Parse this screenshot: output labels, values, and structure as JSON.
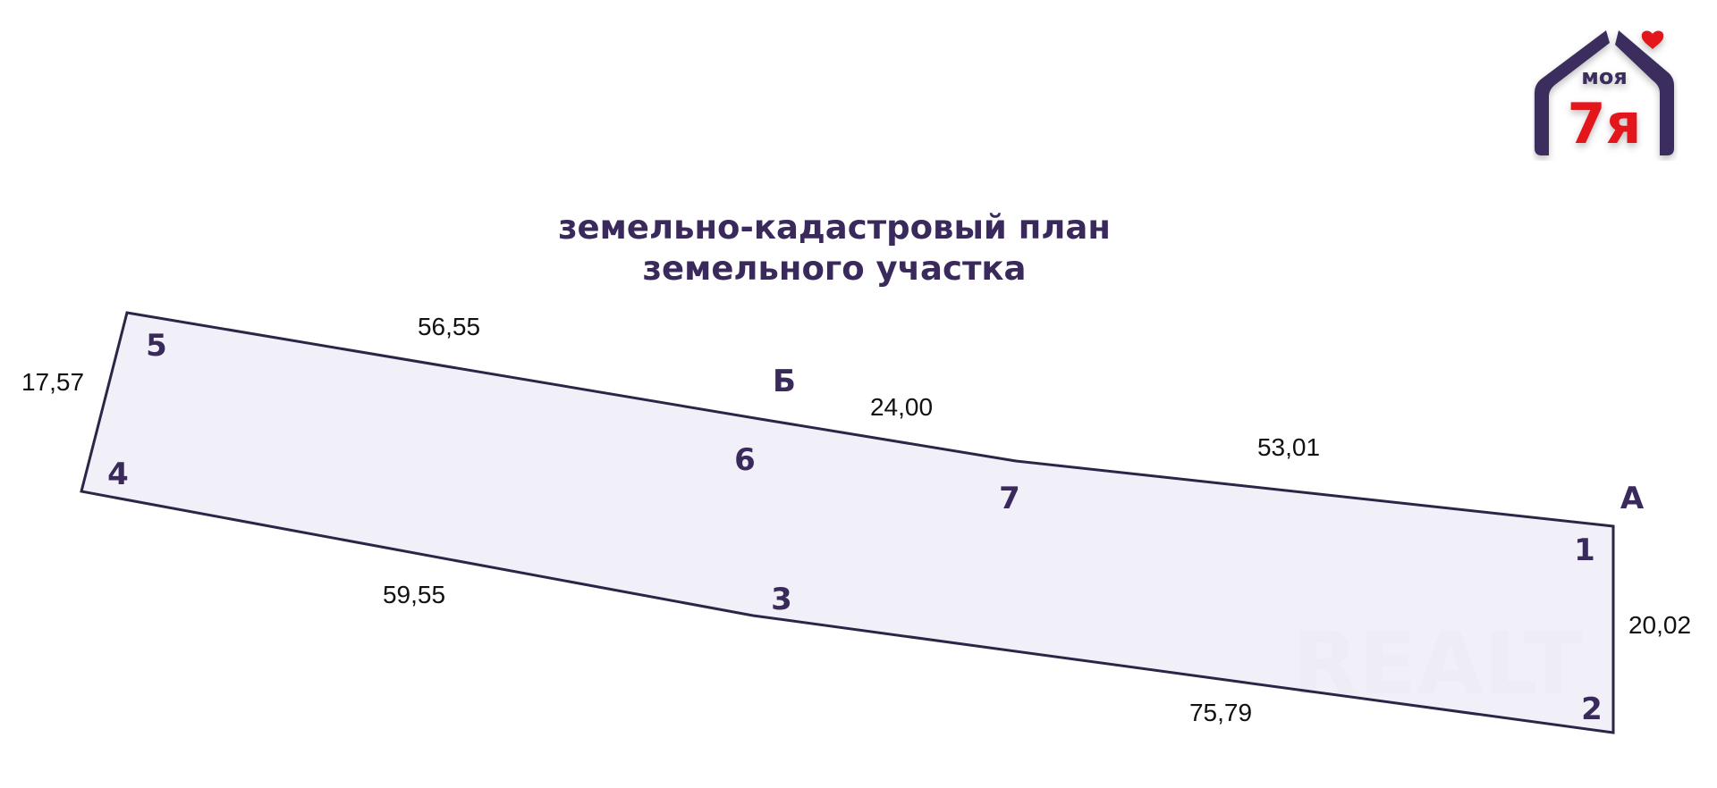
{
  "title": {
    "line1": "земельно-кадастровый план",
    "line2": "земельного участка"
  },
  "logo": {
    "text_top": "моя",
    "text_bottom": "7я",
    "colors": {
      "house": "#3a2f5e",
      "accent": "#e3141b"
    }
  },
  "watermark": "REALT",
  "plot": {
    "fill_color": "#efedf8",
    "stroke_color": "#2e2448",
    "points": [
      "1",
      "2",
      "3",
      "4",
      "5",
      "6",
      "7"
    ],
    "markers": [
      "А",
      "Б"
    ],
    "sides": {
      "s1_2": "20,02",
      "s2_3": "75,79",
      "s3_4": "59,55",
      "s4_5": "17,57",
      "s5_6": "56,55",
      "s6_7": "24,00",
      "s7_1": "53,01"
    }
  }
}
